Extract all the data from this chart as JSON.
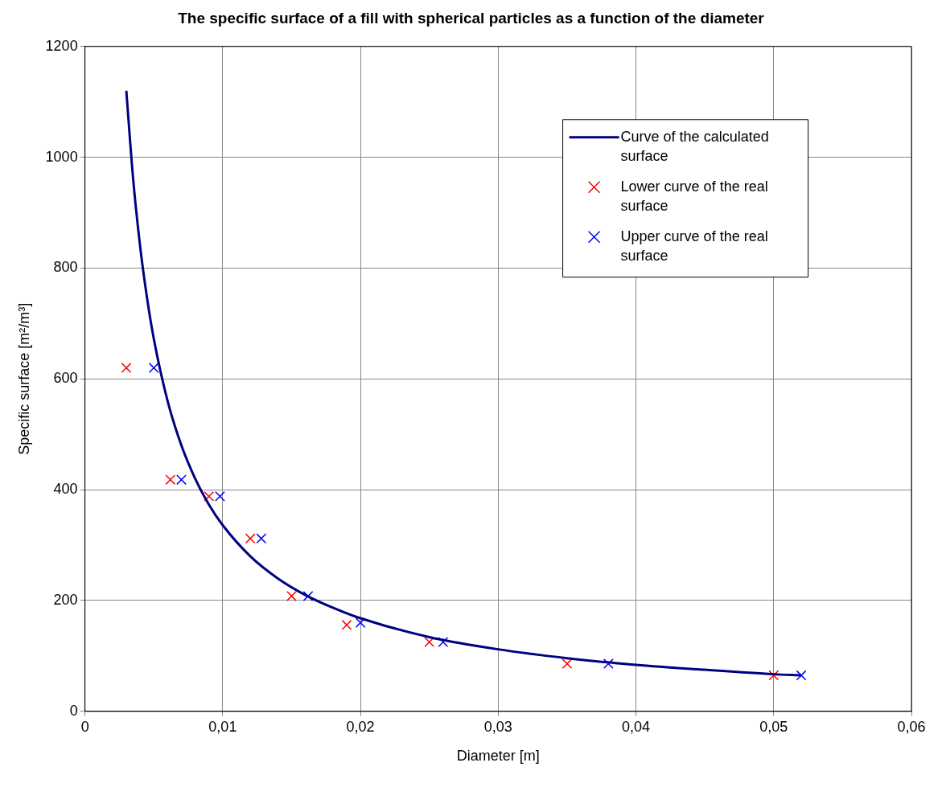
{
  "chart_data": {
    "type": "line",
    "title": "The specific surface of a fill with spherical particles as a function of the diameter",
    "xlabel": "Diameter [m]",
    "ylabel": "Specific surface [m²/m³]",
    "xlim": [
      0,
      0.06
    ],
    "xticks": [
      0,
      {
        "value": 0.01,
        "label": "0,01"
      },
      {
        "value": 0.02,
        "label": "0,02"
      },
      {
        "value": 0.03,
        "label": "0,03"
      },
      {
        "value": 0.04,
        "label": "0,04"
      },
      {
        "value": 0.05,
        "label": "0,05"
      },
      {
        "value": 0.06,
        "label": "0,06"
      }
    ],
    "ylim": [
      0,
      1200
    ],
    "yticks": [
      0,
      200,
      400,
      600,
      800,
      1000,
      1200
    ],
    "grid": true,
    "legend": "top right",
    "series": [
      {
        "name": "Curve of the calculated surface",
        "type": "line",
        "color": "#000080",
        "marker": "none",
        "line_style": "solid",
        "x": [
          0.003,
          0.0035,
          0.004,
          0.0045,
          0.005,
          0.006,
          0.007,
          0.008,
          0.009,
          0.01,
          0.012,
          0.014,
          0.016,
          0.018,
          0.02,
          0.025,
          0.03,
          0.035,
          0.04,
          0.045,
          0.05,
          0.052
        ],
        "values": [
          1120,
          960,
          840,
          747,
          672,
          560,
          480,
          420,
          373,
          336,
          280,
          240,
          210,
          187,
          168,
          134,
          112,
          96,
          84,
          75,
          67,
          65
        ]
      },
      {
        "name": "Lower curve of the real surface",
        "type": "scatter",
        "color": "#ff0000",
        "marker": "cross",
        "x": [
          0.003,
          0.0062,
          0.009,
          0.012,
          0.015,
          0.019,
          0.025,
          0.035,
          0.05
        ],
        "values": [
          620,
          418,
          388,
          312,
          208,
          156,
          125,
          86,
          65
        ]
      },
      {
        "name": "Upper curve of the real surface",
        "type": "scatter",
        "color": "#0000ff",
        "marker": "cross",
        "x": [
          0.005,
          0.007,
          0.0098,
          0.0128,
          0.0162,
          0.02,
          0.026,
          0.038,
          0.052
        ],
        "values": [
          620,
          418,
          388,
          312,
          208,
          160,
          125,
          86,
          65
        ]
      }
    ]
  }
}
